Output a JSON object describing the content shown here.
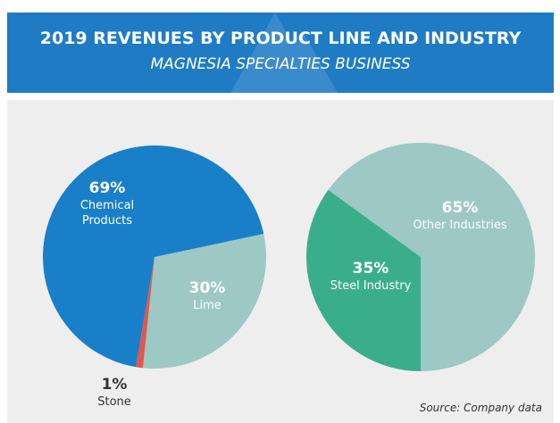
{
  "header": {
    "title": "2019 REVENUES BY PRODUCT LINE AND INDUSTRY",
    "subtitle": "MAGNESIA SPECIALTIES BUSINESS"
  },
  "chart_data": [
    {
      "type": "pie",
      "categories": [
        "Chemical Products",
        "Lime",
        "Stone"
      ],
      "values": [
        69,
        30,
        1
      ],
      "value_labels": [
        "69%",
        "30%",
        "1%"
      ],
      "colors": [
        "#1a7fc9",
        "#9ec8c4",
        "#e0574f"
      ]
    },
    {
      "type": "pie",
      "categories": [
        "Other Industries",
        "Steel Industry"
      ],
      "values": [
        65,
        35
      ],
      "value_labels": [
        "65%",
        "35%"
      ],
      "colors": [
        "#9ec8c4",
        "#3aae8a"
      ]
    }
  ],
  "source": "Source: Company data"
}
